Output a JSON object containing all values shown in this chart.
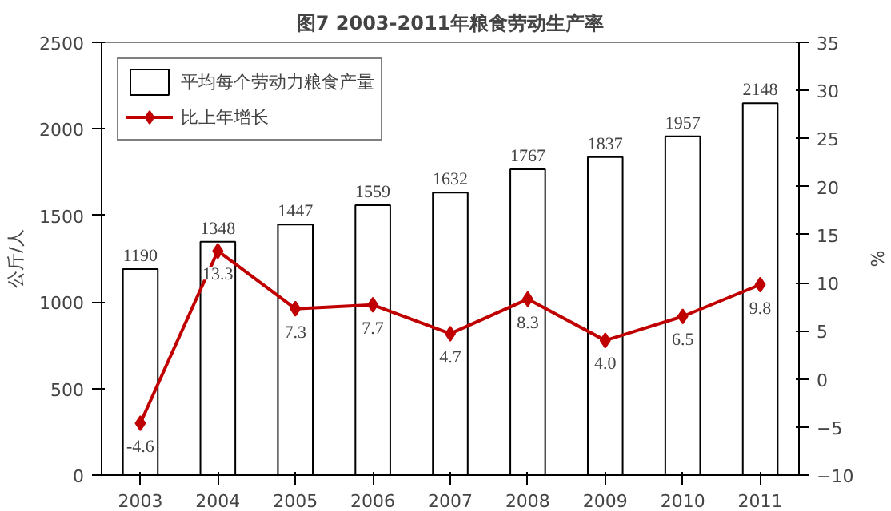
{
  "chart_data": {
    "type": "bar",
    "title": "图7 2003-2011年粮食劳动生产率",
    "ylabel": "公斤/人",
    "y2label": "%",
    "categories": [
      "2003",
      "2004",
      "2005",
      "2006",
      "2007",
      "2008",
      "2009",
      "2010",
      "2011"
    ],
    "series": [
      {
        "name": "平均每个劳动力粮食产量",
        "color": "#ffffff",
        "values": [
          1190,
          1348,
          1447,
          1559,
          1632,
          1767,
          1837,
          1957,
          2148
        ]
      },
      {
        "name": "比上年增长",
        "type": "line",
        "axis": "y2",
        "color": "#c00000",
        "marker": "diamond",
        "values": [
          -4.6,
          13.3,
          7.3,
          7.7,
          4.7,
          8.3,
          4.0,
          6.5,
          9.8
        ],
        "value_labels": [
          "-4.6",
          "13.3",
          "7.3",
          "7.7",
          "4.7",
          "8.3",
          "4.0",
          "6.5",
          "9.8"
        ]
      }
    ],
    "ylim": [
      0,
      2500
    ],
    "yticks": [
      0,
      500,
      1000,
      1500,
      2000,
      2500
    ],
    "y2lim": [
      -10,
      35
    ],
    "y2ticks": [
      -10,
      -5,
      0,
      5,
      10,
      15,
      20,
      25,
      30,
      35
    ],
    "data_labels": true,
    "legend": "top left",
    "grid": false
  }
}
